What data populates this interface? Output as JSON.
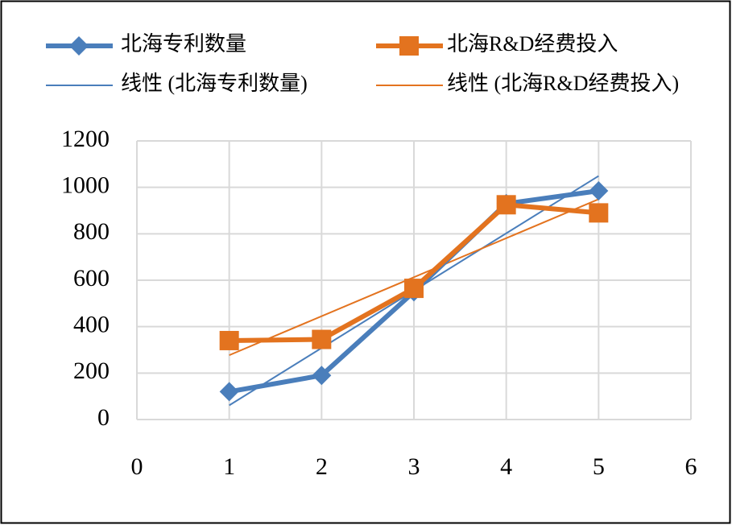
{
  "chart_data": {
    "type": "line",
    "series": [
      {
        "name": "北海专利数量",
        "color": "#4a7ebb",
        "marker": "diamond",
        "width": 6,
        "x": [
          1,
          2,
          3,
          4,
          5
        ],
        "values": [
          120,
          190,
          550,
          930,
          985
        ]
      },
      {
        "name": "北海R&D经费投入",
        "color": "#e3731f",
        "marker": "square",
        "width": 6,
        "x": [
          1,
          2,
          3,
          4,
          5
        ],
        "values": [
          340,
          345,
          565,
          925,
          890
        ]
      },
      {
        "name": "线性 (北海专利数量)",
        "color": "#4a7ebb",
        "marker": "none",
        "width": 2,
        "x": [
          1,
          5
        ],
        "values": [
          61,
          1049
        ]
      },
      {
        "name": "线性 (北海R&D经费投入)",
        "color": "#e3731f",
        "marker": "none",
        "width": 2,
        "x": [
          1,
          5
        ],
        "values": [
          277,
          949
        ]
      }
    ],
    "xlim": [
      0,
      6
    ],
    "xticks": [
      0,
      1,
      2,
      3,
      4,
      5,
      6
    ],
    "ylim": [
      0,
      1200
    ],
    "yticks": [
      0,
      200,
      400,
      600,
      800,
      1000,
      1200
    ],
    "grid": true
  }
}
